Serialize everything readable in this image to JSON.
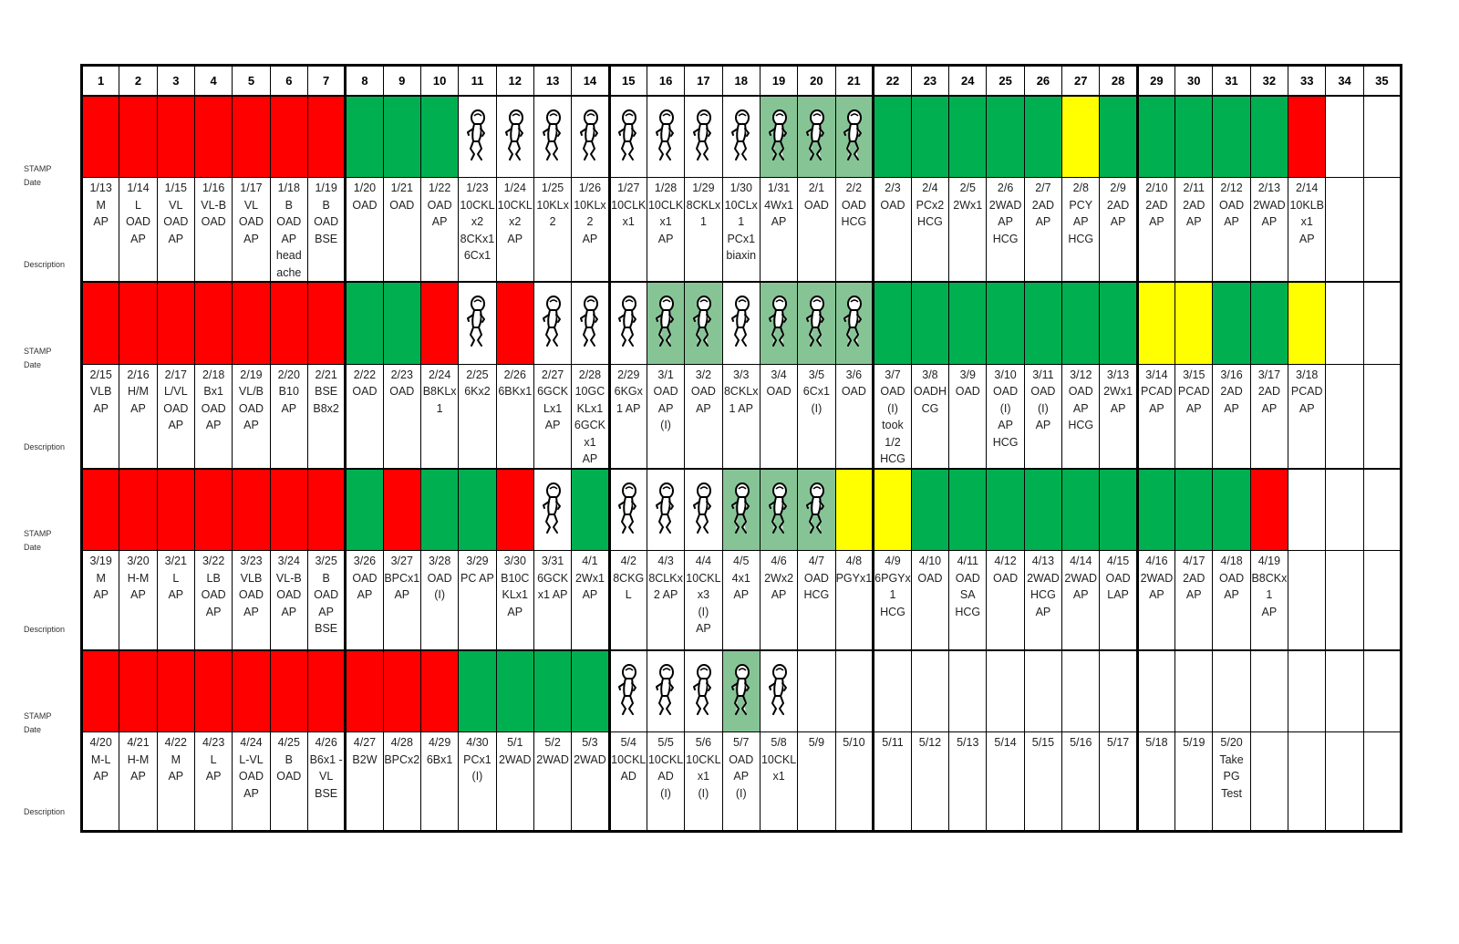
{
  "side_labels": {
    "stamp": "STAMP",
    "date": "Date",
    "description": "Description"
  },
  "colors": {
    "red": "#FF0000",
    "green": "#00B050",
    "yellow": "#FFFF00",
    "baby-green": "#86C496",
    "baby": "#FFFFFF",
    "empty": "#FFFFFF"
  },
  "columns": [
    "1",
    "2",
    "3",
    "4",
    "5",
    "6",
    "7",
    "8",
    "9",
    "10",
    "11",
    "12",
    "13",
    "14",
    "15",
    "16",
    "17",
    "18",
    "19",
    "20",
    "21",
    "22",
    "23",
    "24",
    "25",
    "26",
    "27",
    "28",
    "29",
    "30",
    "31",
    "32",
    "33",
    "34",
    "35"
  ],
  "blocks": [
    {
      "stamps": [
        "red",
        "red",
        "red",
        "red",
        "red",
        "red",
        "red",
        "green",
        "green",
        "green",
        "baby",
        "baby",
        "baby",
        "baby",
        "baby",
        "baby",
        "baby",
        "baby",
        "baby-green",
        "baby-green",
        "baby-green",
        "green",
        "green",
        "green",
        "green",
        "green",
        "yellow",
        "green",
        "green",
        "green",
        "green",
        "green",
        "red",
        "empty",
        "empty"
      ],
      "descriptions": [
        "1/13\nM\nAP",
        "1/14\nL\nOAD\nAP",
        "1/15\nVL\nOAD\nAP",
        "1/16\nVL-B\nOAD",
        "1/17\nVL\nOAD\nAP",
        "1/18\nB\nOAD\nAP\nhead\nache",
        "1/19\nB\nOAD\nBSE",
        "1/20\nOAD",
        "1/21\nOAD",
        "1/22\nOAD\nAP",
        "1/23\n10CKL\nx2\n8CKx1\n6Cx1",
        "1/24\n10CKL\nx2\nAP",
        "1/25\n10KLx\n2",
        "1/26\n10KLx\n2\nAP",
        "1/27\n10CLK\nx1",
        "1/28\n10CLK\nx1\nAP",
        "1/29\n8CKLx\n1",
        "1/30\n10CLx\n1\nPCx1\nbiaxin",
        "1/31\n4Wx1\nAP",
        "2/1\nOAD",
        "2/2\nOAD\nHCG",
        "2/3\nOAD",
        "2/4\nPCx2\nHCG",
        "2/5\n2Wx1",
        "2/6\n2WAD\nAP\nHCG",
        "2/7\n2AD\nAP",
        "2/8\nPCY\nAP\nHCG",
        "2/9\n2AD\nAP",
        "2/10\n2AD\nAP",
        "2/11\n2AD\nAP",
        "2/12\nOAD\nAP",
        "2/13\n2WAD\nAP",
        "2/14\n10KLB\nx1\nAP",
        "",
        ""
      ]
    },
    {
      "stamps": [
        "red",
        "red",
        "red",
        "red",
        "red",
        "red",
        "red",
        "green",
        "green",
        "red",
        "baby",
        "red",
        "baby",
        "baby",
        "baby",
        "baby-green",
        "baby-green",
        "baby",
        "baby-green",
        "baby-green",
        "baby-green",
        "green",
        "green",
        "green",
        "green",
        "green",
        "green",
        "green",
        "yellow",
        "yellow",
        "green",
        "green",
        "yellow",
        "empty",
        "empty"
      ],
      "descriptions": [
        "2/15\nVLB\nAP",
        "2/16\nH/M\nAP",
        "2/17\nL/VL\nOAD\nAP",
        "2/18\nBx1\nOAD\nAP",
        "2/19\nVL/B\nOAD\nAP",
        "2/20\nB10\nAP",
        "2/21\nBSE\nB8x2",
        "2/22\nOAD",
        "2/23\nOAD",
        "2/24\nB8KLx\n1",
        "2/25\n6Kx2",
        "2/26\n6BKx1",
        "2/27\n6GCK\nLx1\nAP",
        "2/28\n10GC\nKLx1\n6GCK\nx1\nAP",
        "2/29\n6KGx\n1  AP",
        "3/1\nOAD\nAP\n(I)",
        "3/2\nOAD\nAP",
        "3/3\n8CKLx\n1  AP",
        "3/4\nOAD",
        "3/5\n6Cx1\n(I)",
        "3/6\nOAD",
        "3/7\nOAD\n(I)\ntook\n1/2\nHCG",
        "3/8\nOADH\nCG",
        "3/9\nOAD",
        "3/10\nOAD\n(I)\nAP\nHCG",
        "3/11\nOAD\n(I)\nAP",
        "3/12\nOAD\nAP\nHCG",
        "3/13\n2Wx1\nAP",
        "3/14\nPCAD\nAP",
        "3/15\nPCAD\nAP",
        "3/16\n2AD\nAP",
        "3/17\n2AD\nAP",
        "3/18\nPCAD\nAP",
        "",
        ""
      ]
    },
    {
      "stamps": [
        "red",
        "red",
        "red",
        "red",
        "red",
        "red",
        "red",
        "green",
        "red",
        "green",
        "green",
        "red",
        "baby",
        "green",
        "baby",
        "baby",
        "baby",
        "baby-green",
        "baby-green",
        "baby-green",
        "yellow",
        "yellow",
        "green",
        "green",
        "green",
        "green",
        "green",
        "green",
        "green",
        "green",
        "green",
        "red",
        "empty",
        "empty",
        "empty"
      ],
      "descriptions": [
        "3/19\nM\nAP",
        "3/20\nH-M\nAP",
        "3/21\nL\nAP",
        "3/22\nLB\nOAD\nAP",
        "3/23\nVLB\nOAD\nAP",
        "3/24\nVL-B\nOAD\nAP",
        "3/25\nB\nOAD\nAP\nBSE",
        "3/26\nOAD\nAP",
        "3/27\nBPCx1\nAP",
        "3/28\nOAD\n(I)",
        "3/29\nPC AP",
        "3/30\nB10C\nKLx1\nAP",
        "3/31\n6GCK\nx1  AP",
        "4/1\n2Wx1\nAP",
        "4/2\n8CKG\nL",
        "4/3\n8CLKx\n2   AP",
        "4/4\n10CKL\nx3\n(I)\nAP",
        "4/5\n4x1\nAP",
        "4/6\n2Wx2\nAP",
        "4/7\nOAD\nHCG",
        "4/8\nPGYx1",
        "4/9\n6PGYx\n1\nHCG",
        "4/10\nOAD",
        "4/11\nOAD\nSA\nHCG",
        "4/12\nOAD",
        "4/13\n2WAD\nHCG\nAP",
        "4/14\n2WAD\nAP",
        "4/15\nOAD\nLAP",
        "4/16\n2WAD\nAP",
        "4/17\n2AD\nAP",
        "4/18\nOAD\nAP",
        "4/19\nB8CKx\n1\nAP",
        "",
        "",
        ""
      ]
    },
    {
      "stamps": [
        "red",
        "red",
        "red",
        "red",
        "red",
        "red",
        "red",
        "red",
        "red",
        "red",
        "green",
        "green",
        "green",
        "green",
        "baby",
        "baby",
        "baby",
        "baby-green",
        "baby",
        "empty",
        "empty",
        "empty",
        "empty",
        "empty",
        "empty",
        "empty",
        "empty",
        "empty",
        "empty",
        "empty",
        "empty",
        "empty",
        "empty",
        "empty",
        "empty"
      ],
      "descriptions": [
        "4/20\nM-L\nAP",
        "4/21\nH-M\nAP",
        "4/22\nM\nAP",
        "4/23\nL\nAP",
        "4/24\nL-VL\nOAD\nAP",
        "4/25\nB\nOAD",
        "4/26\nB6x1 -\nVL\nBSE",
        "4/27\nB2W",
        "4/28\nBPCx2",
        "4/29\n6Bx1",
        "4/30\nPCx1\n(I)",
        "5/1\n2WAD",
        "5/2\n2WAD",
        "5/3\n2WAD",
        "5/4\n10CKL\nAD",
        "5/5\n10CKL\nAD\n(I)",
        "5/6\n10CKL\nx1\n(I)",
        "5/7\nOAD\nAP\n(I)",
        "5/8\n10CKL\nx1",
        "5/9",
        "5/10",
        "5/11",
        "5/12",
        "5/13",
        "5/14",
        "5/15",
        "5/16",
        "5/17",
        "5/18",
        "5/19",
        "5/20\nTake\nPG\nTest",
        "",
        "",
        "",
        ""
      ]
    }
  ]
}
